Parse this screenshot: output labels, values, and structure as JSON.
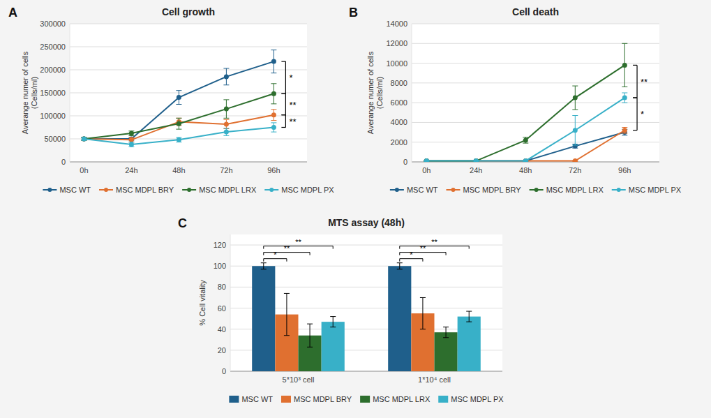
{
  "chart_data": [
    {
      "type": "line",
      "title": "Cell growth",
      "panel_label": "A",
      "ylabel": "Averange numer of cells\n(Cells/ml)",
      "categories": [
        "0h",
        "24h",
        "48h",
        "72h",
        "96h"
      ],
      "ylim": [
        0,
        300000
      ],
      "yticks": [
        0,
        50000,
        100000,
        150000,
        200000,
        250000,
        300000
      ],
      "grid": true,
      "legend": "bottom",
      "marker": "circle",
      "series": [
        {
          "name": "MSC WT",
          "color": "#1f5f8b",
          "values": [
            50000,
            50000,
            140000,
            185000,
            218000
          ],
          "yerr": [
            3000,
            3000,
            15000,
            18000,
            25000
          ]
        },
        {
          "name": "MSC MDPL BRY",
          "color": "#e07030",
          "values": [
            50000,
            48000,
            87000,
            82000,
            102000
          ],
          "yerr": [
            3000,
            5000,
            8000,
            10000,
            12000
          ]
        },
        {
          "name": "MSC MDPL LRX",
          "color": "#2d6e2d",
          "values": [
            50000,
            62000,
            83000,
            115000,
            148000
          ],
          "yerr": [
            3000,
            5000,
            12000,
            20000,
            22000
          ]
        },
        {
          "name": "MSC MDPL PX",
          "color": "#38b0c8",
          "values": [
            50000,
            38000,
            48000,
            65000,
            75000
          ],
          "yerr": [
            3000,
            5000,
            5000,
            8000,
            10000
          ]
        }
      ],
      "annotations": [
        {
          "text": "*",
          "y": [
            218000,
            148000
          ]
        },
        {
          "text": "**",
          "y": [
            148000,
            102000
          ]
        },
        {
          "text": "**",
          "y": [
            102000,
            75000
          ]
        }
      ]
    },
    {
      "type": "line",
      "title": "Cell death",
      "panel_label": "B",
      "ylabel": "Averange numer of cells\n(Cells/ml)",
      "categories": [
        "0h",
        "24h",
        "48h",
        "72h",
        "96h"
      ],
      "ylim": [
        0,
        14000
      ],
      "yticks": [
        0,
        2000,
        4000,
        6000,
        8000,
        10000,
        12000,
        14000
      ],
      "grid": true,
      "legend": "bottom",
      "marker": "circle",
      "series": [
        {
          "name": "MSC WT",
          "color": "#1f5f8b",
          "values": [
            100,
            100,
            100,
            1600,
            3000
          ],
          "yerr": [
            50,
            50,
            50,
            200,
            300
          ]
        },
        {
          "name": "MSC MDPL BRY",
          "color": "#e07030",
          "values": [
            100,
            100,
            100,
            100,
            3200
          ],
          "yerr": [
            50,
            50,
            50,
            50,
            300
          ]
        },
        {
          "name": "MSC MDPL LRX",
          "color": "#2d6e2d",
          "values": [
            100,
            100,
            2200,
            6500,
            9800
          ],
          "yerr": [
            50,
            50,
            300,
            1200,
            2200
          ]
        },
        {
          "name": "MSC MDPL PX",
          "color": "#38b0c8",
          "values": [
            100,
            100,
            100,
            3200,
            6500
          ],
          "yerr": [
            50,
            50,
            50,
            1500,
            500
          ]
        }
      ],
      "annotations": [
        {
          "text": "**",
          "y": [
            9800,
            6500
          ]
        },
        {
          "text": "*",
          "y": [
            6500,
            3200
          ]
        }
      ]
    },
    {
      "type": "bar",
      "title": "MTS assay (48h)",
      "panel_label": "C",
      "ylabel": "% Cell vitality",
      "categories": [
        "5*10³ cell",
        "1*10⁴ cell"
      ],
      "ylim": [
        0,
        130
      ],
      "yticks": [
        0,
        20,
        40,
        60,
        80,
        100,
        120
      ],
      "grid": true,
      "legend": "bottom",
      "series": [
        {
          "name": "MSC WT",
          "color": "#1f5f8b",
          "values": [
            100,
            100
          ],
          "yerr": [
            3,
            3
          ]
        },
        {
          "name": "MSC MDPL BRY",
          "color": "#e07030",
          "values": [
            54,
            55
          ],
          "yerr": [
            20,
            15
          ]
        },
        {
          "name": "MSC MDPL LRX",
          "color": "#2d6e2d",
          "values": [
            34,
            37
          ],
          "yerr": [
            11,
            5
          ]
        },
        {
          "name": "MSC MDPL PX",
          "color": "#38b0c8",
          "values": [
            47,
            52
          ],
          "yerr": [
            5,
            5
          ]
        }
      ],
      "annotations": [
        {
          "text": "*",
          "y": 107,
          "category": "5*10³ cell",
          "from": "MSC WT",
          "to": "MSC MDPL BRY"
        },
        {
          "text": "**",
          "y": 113,
          "category": "5*10³ cell",
          "from": "MSC WT",
          "to": "MSC MDPL LRX"
        },
        {
          "text": "**",
          "y": 119,
          "category": "5*10³ cell",
          "from": "MSC WT",
          "to": "MSC MDPL PX"
        },
        {
          "text": "*",
          "y": 107,
          "category": "1*10⁴ cell",
          "from": "MSC WT",
          "to": "MSC MDPL BRY"
        },
        {
          "text": "**",
          "y": 113,
          "category": "1*10⁴ cell",
          "from": "MSC WT",
          "to": "MSC MDPL LRX"
        },
        {
          "text": "**",
          "y": 119,
          "category": "1*10⁴ cell",
          "from": "MSC WT",
          "to": "MSC MDPL PX"
        }
      ]
    }
  ]
}
